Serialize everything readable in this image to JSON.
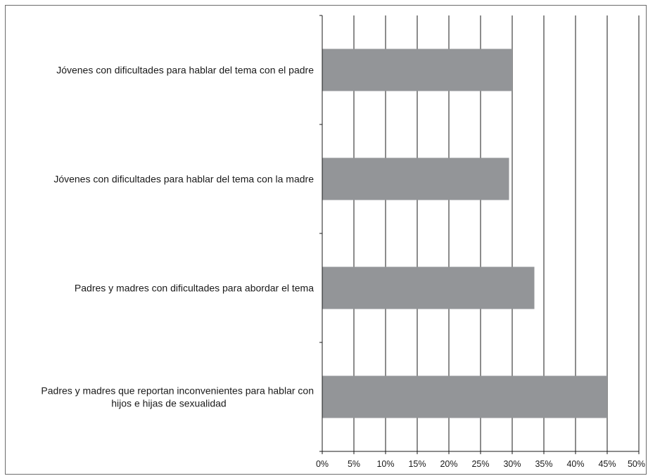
{
  "chart_data": {
    "type": "bar",
    "orientation": "horizontal",
    "categories": [
      [
        "Jóvenes con dificultades para hablar del tema con el padre"
      ],
      [
        "Jóvenes con dificultades para hablar del tema con la madre"
      ],
      [
        "Padres y madres con dificultades para abordar el tema"
      ],
      [
        "Padres y madres que reportan inconvenientes para hablar con",
        "hijos e hijas de  sexualidad"
      ]
    ],
    "values": [
      30,
      29.5,
      33.5,
      45
    ],
    "xlim": [
      0,
      50
    ],
    "x_ticks": [
      "0%",
      "5%",
      "10%",
      "15%",
      "20%",
      "25%",
      "30%",
      "35%",
      "40%",
      "45%",
      "50%"
    ],
    "grid": true,
    "legend": "none",
    "title": "",
    "xlabel": "",
    "ylabel": "",
    "colors": {
      "bar": "#939598",
      "grid": "#1a1a1a",
      "frame": "#6b6b6b"
    }
  }
}
